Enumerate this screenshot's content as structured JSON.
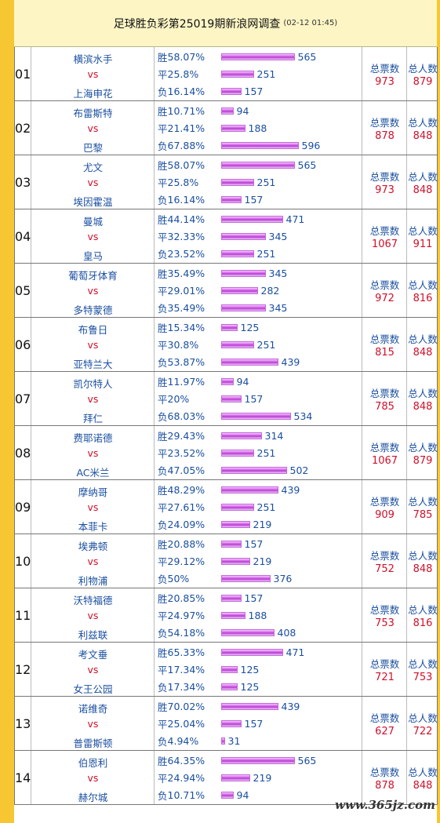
{
  "header": {
    "title": "足球胜负彩第25019期新浪网调查",
    "time": "(02-12 01:45)"
  },
  "labels": {
    "vs": "vs",
    "win": "胜",
    "draw": "平",
    "loss": "负",
    "total_votes": "总票数",
    "total_people": "总人数"
  },
  "bar_color": "#c94fe0",
  "accent_blue": "#1a4fa0",
  "accent_red": "#d0102a",
  "matches": [
    {
      "num": "01",
      "home": "横滨水手",
      "away": "上海申花",
      "win_pct": "58.07%",
      "win": 565,
      "draw_pct": "25.8%",
      "draw": 251,
      "loss_pct": "16.14%",
      "loss": 157,
      "votes": 973,
      "people": 879
    },
    {
      "num": "02",
      "home": "布雷斯特",
      "away": "巴黎",
      "win_pct": "10.71%",
      "win": 94,
      "draw_pct": "21.41%",
      "draw": 188,
      "loss_pct": "67.88%",
      "loss": 596,
      "votes": 878,
      "people": 848
    },
    {
      "num": "03",
      "home": "尤文",
      "away": "埃因霍温",
      "win_pct": "58.07%",
      "win": 565,
      "draw_pct": "25.8%",
      "draw": 251,
      "loss_pct": "16.14%",
      "loss": 157,
      "votes": 973,
      "people": 848
    },
    {
      "num": "04",
      "home": "曼城",
      "away": "皇马",
      "win_pct": "44.14%",
      "win": 471,
      "draw_pct": "32.33%",
      "draw": 345,
      "loss_pct": "23.52%",
      "loss": 251,
      "votes": 1067,
      "people": 911
    },
    {
      "num": "05",
      "home": "葡萄牙体育",
      "away": "多特蒙德",
      "win_pct": "35.49%",
      "win": 345,
      "draw_pct": "29.01%",
      "draw": 282,
      "loss_pct": "35.49%",
      "loss": 345,
      "votes": 972,
      "people": 816
    },
    {
      "num": "06",
      "home": "布鲁日",
      "away": "亚特兰大",
      "win_pct": "15.34%",
      "win": 125,
      "draw_pct": "30.8%",
      "draw": 251,
      "loss_pct": "53.87%",
      "loss": 439,
      "votes": 815,
      "people": 848
    },
    {
      "num": "07",
      "home": "凯尔特人",
      "away": "拜仁",
      "win_pct": "11.97%",
      "win": 94,
      "draw_pct": "20%",
      "draw": 157,
      "loss_pct": "68.03%",
      "loss": 534,
      "votes": 785,
      "people": 848
    },
    {
      "num": "08",
      "home": "费耶诺德",
      "away": "AC米兰",
      "win_pct": "29.43%",
      "win": 314,
      "draw_pct": "23.52%",
      "draw": 251,
      "loss_pct": "47.05%",
      "loss": 502,
      "votes": 1067,
      "people": 879
    },
    {
      "num": "09",
      "home": "摩纳哥",
      "away": "本菲卡",
      "win_pct": "48.29%",
      "win": 439,
      "draw_pct": "27.61%",
      "draw": 251,
      "loss_pct": "24.09%",
      "loss": 219,
      "votes": 909,
      "people": 785
    },
    {
      "num": "10",
      "home": "埃弗顿",
      "away": "利物浦",
      "win_pct": "20.88%",
      "win": 157,
      "draw_pct": "29.12%",
      "draw": 219,
      "loss_pct": "50%",
      "loss": 376,
      "votes": 752,
      "people": 848
    },
    {
      "num": "11",
      "home": "沃特福德",
      "away": "利兹联",
      "win_pct": "20.85%",
      "win": 157,
      "draw_pct": "24.97%",
      "draw": 188,
      "loss_pct": "54.18%",
      "loss": 408,
      "votes": 753,
      "people": 816
    },
    {
      "num": "12",
      "home": "考文垂",
      "away": "女王公园",
      "win_pct": "65.33%",
      "win": 471,
      "draw_pct": "17.34%",
      "draw": 125,
      "loss_pct": "17.34%",
      "loss": 125,
      "votes": 721,
      "people": 753
    },
    {
      "num": "13",
      "home": "诺维奇",
      "away": "普雷斯顿",
      "win_pct": "70.02%",
      "win": 439,
      "draw_pct": "25.04%",
      "draw": 157,
      "loss_pct": "4.94%",
      "loss": 31,
      "votes": 627,
      "people": 722
    },
    {
      "num": "14",
      "home": "伯恩利",
      "away": "赫尔城",
      "win_pct": "64.35%",
      "win": 565,
      "draw_pct": "24.94%",
      "draw": 219,
      "loss_pct": "10.71%",
      "loss": 94,
      "votes": 878,
      "people": 848
    }
  ],
  "watermark": "www.365jz.com"
}
